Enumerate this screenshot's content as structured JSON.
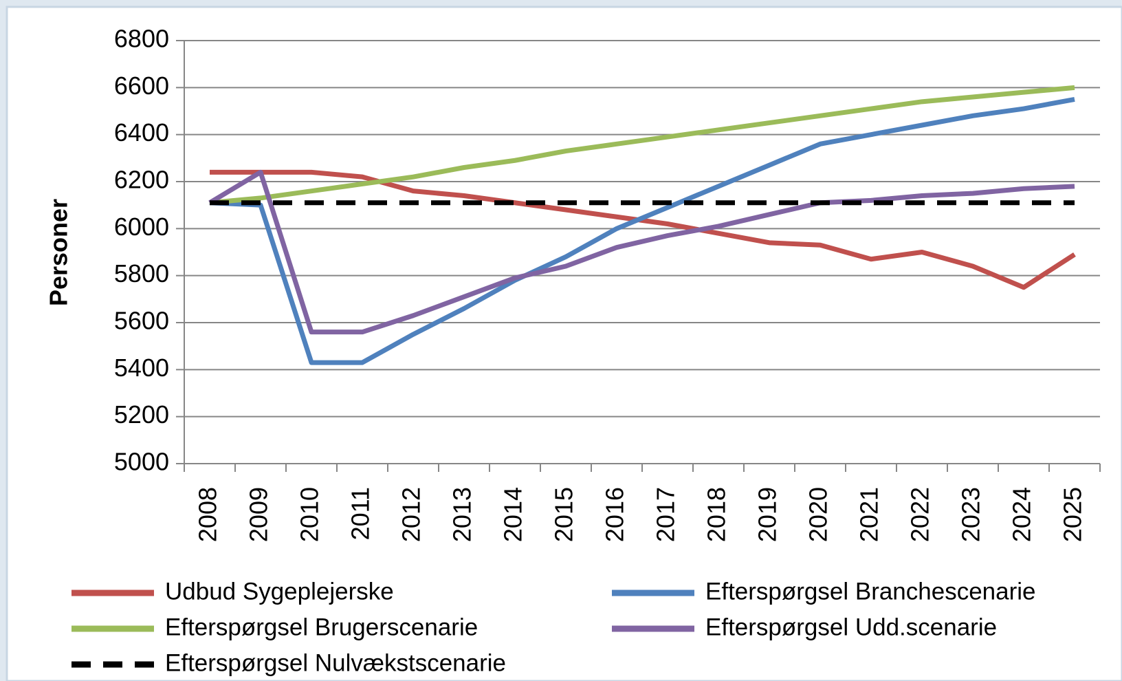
{
  "chart_data": {
    "type": "line",
    "y_label": "Personer",
    "categories": [
      "2008",
      "2009",
      "2010",
      "2011",
      "2012",
      "2013",
      "2014",
      "2015",
      "2016",
      "2017",
      "2018",
      "2019",
      "2020",
      "2021",
      "2022",
      "2023",
      "2024",
      "2025"
    ],
    "series": [
      {
        "name": "Udbud Sygeplejerske",
        "color": "#c0504d",
        "values": [
          6240,
          6240,
          6240,
          6220,
          6160,
          6140,
          6110,
          6080,
          6050,
          6020,
          5980,
          5940,
          5930,
          5870,
          5900,
          5840,
          5750,
          5890
        ]
      },
      {
        "name": "Efterspørgsel Branchescenarie",
        "color": "#4f81bd",
        "values": [
          6110,
          6100,
          5430,
          5430,
          5550,
          5660,
          5780,
          5880,
          6000,
          6090,
          6180,
          6270,
          6360,
          6400,
          6440,
          6480,
          6510,
          6550
        ]
      },
      {
        "name": "Efterspørgsel Brugerscenarie",
        "color": "#9bbb59",
        "values": [
          6110,
          6130,
          6160,
          6190,
          6220,
          6260,
          6290,
          6330,
          6360,
          6390,
          6420,
          6450,
          6480,
          6510,
          6540,
          6560,
          6580,
          6600
        ]
      },
      {
        "name": "Efterspørgsel Udd.scenarie",
        "color": "#8064a2",
        "values": [
          6110,
          6240,
          5560,
          5560,
          5630,
          5710,
          5790,
          5840,
          5920,
          5970,
          6010,
          6060,
          6110,
          6120,
          6140,
          6150,
          6170,
          6180
        ]
      },
      {
        "name": "Efterspørgsel Nulvækstscenarie",
        "color": "#000000",
        "dashed": true,
        "values": [
          6110,
          6110,
          6110,
          6110,
          6110,
          6110,
          6110,
          6110,
          6110,
          6110,
          6110,
          6110,
          6110,
          6110,
          6110,
          6110,
          6110,
          6110
        ]
      }
    ],
    "ylim": [
      5000,
      6800
    ],
    "yticks": [
      5000,
      5200,
      5400,
      5600,
      5800,
      6000,
      6200,
      6400,
      6600,
      6800
    ],
    "grid": true
  }
}
